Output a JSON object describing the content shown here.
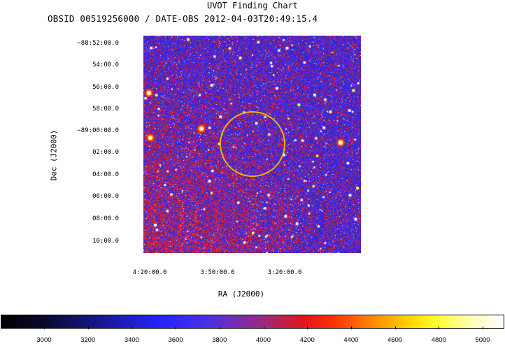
{
  "title": "UVOT Finding Chart",
  "subtitle": "OBSID 00519256000 / DATE-OBS 2012-04-03T20:49:15.4",
  "y_axis": {
    "label": "Dec (J2000)",
    "ticks": [
      "−88:52:00.0",
      "54:00.0",
      "56:00.0",
      "58:00.0",
      "−89:00:00.0",
      "02:00.0",
      "04:00.0",
      "06:00.0",
      "08:00.0",
      "10:00.0"
    ]
  },
  "x_axis": {
    "label": "RA (J2000)",
    "ticks": [
      "4:20:00.0",
      "3:50:00.0",
      "3:20:00.0"
    ]
  },
  "colorbar": {
    "ticks": [
      "3000",
      "3200",
      "3400",
      "3600",
      "3800",
      "4000",
      "4200",
      "4400",
      "4600",
      "4800",
      "5000"
    ],
    "colors": [
      "#000000",
      "#2424ff",
      "#e0141c",
      "#ff8800",
      "#ffff33",
      "#ffffff"
    ]
  },
  "overlay": {
    "shape": "circle",
    "color": "#f0b400"
  },
  "image": {
    "background": "#2a23c8",
    "noise_colors": [
      "#e01818",
      "#ff2a00",
      "#ffffff",
      "#7a1fb0"
    ]
  }
}
